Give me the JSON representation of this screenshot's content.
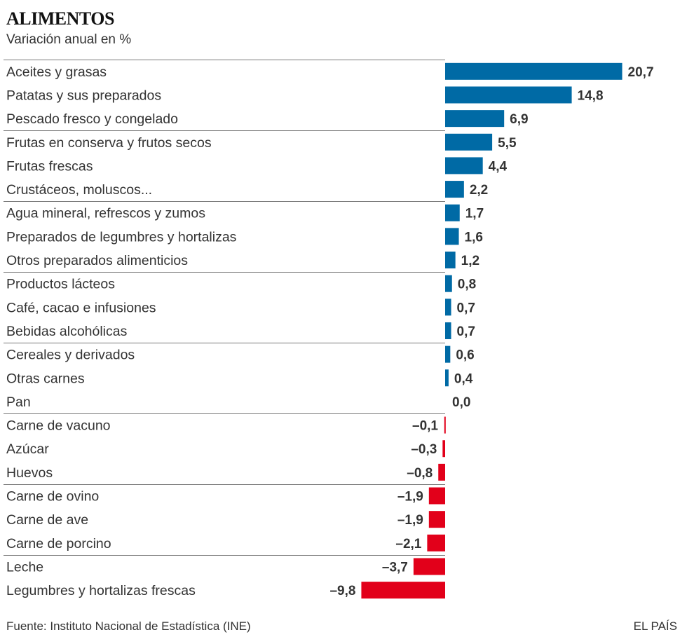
{
  "header": {
    "title": "ALIMENTOS",
    "subtitle": "Variación anual en %"
  },
  "footer": {
    "source": "Fuente: Instituto Nacional de Estadística (INE)",
    "brand": "EL PAÍS"
  },
  "colors": {
    "positive": "#006aa5",
    "negative": "#e2001a",
    "separator": "#777777"
  },
  "chart_data": {
    "type": "bar",
    "orientation": "horizontal",
    "title": "ALIMENTOS",
    "subtitle": "Variación anual en %",
    "categories": [
      "Aceites y grasas",
      "Patatas y sus preparados",
      "Pescado fresco y congelado",
      "Frutas en conserva y frutos secos",
      "Frutas frescas",
      "Crustáceos, moluscos...",
      "Agua mineral, refrescos y zumos",
      "Preparados de legumbres y hortalizas",
      "Otros preparados alimenticios",
      "Productos lácteos",
      "Café, cacao e infusiones",
      "Bebidas alcohólicas",
      "Cereales y derivados",
      "Otras carnes",
      "Pan",
      "Carne de vacuno",
      "Azúcar",
      "Huevos",
      "Carne de ovino",
      "Carne de ave",
      "Carne de porcino",
      "Leche",
      "Legumbres y hortalizas frescas"
    ],
    "values": [
      20.7,
      14.8,
      6.9,
      5.5,
      4.4,
      2.2,
      1.7,
      1.6,
      1.2,
      0.8,
      0.7,
      0.7,
      0.6,
      0.4,
      0.0,
      -0.1,
      -0.3,
      -0.8,
      -1.9,
      -1.9,
      -2.1,
      -3.7,
      -9.8
    ],
    "value_labels": [
      "20,7",
      "14,8",
      "6,9",
      "5,5",
      "4,4",
      "2,2",
      "1,7",
      "1,6",
      "1,2",
      "0,8",
      "0,7",
      "0,7",
      "0,6",
      "0,4",
      "0,0",
      "–0,1",
      "–0,3",
      "–0,8",
      "–1,9",
      "–1,9",
      "–2,1",
      "–3,7",
      "–9,8"
    ],
    "group_breaks_before": [
      3,
      6,
      9,
      12,
      15,
      18,
      21
    ],
    "xlim": [
      -9.8,
      20.7
    ],
    "xlabel": "",
    "ylabel": ""
  }
}
